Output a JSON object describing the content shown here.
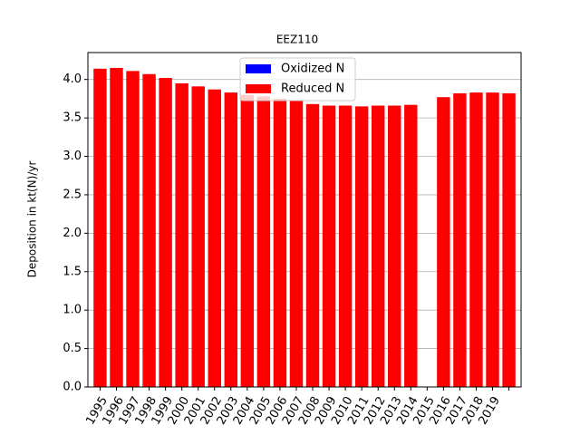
{
  "chart_data": {
    "type": "stacked-bar",
    "title": "EEZ110",
    "y_label": "Deposition in kt(N)/yr",
    "categories": [
      "1995",
      "1996",
      "1997",
      "1998",
      "1999",
      "2000",
      "2001",
      "2002",
      "2003",
      "2004",
      "2005",
      "2006",
      "2007",
      "2008",
      "2009",
      "2010",
      "2011",
      "2012",
      "2013",
      "2014",
      "2015",
      "2016",
      "2017",
      "2018",
      "2019",
      null
    ],
    "series": [
      {
        "name": "Oxidized N",
        "color": "#0000ff",
        "values": [
          0,
          0,
          0,
          0,
          0,
          0,
          0,
          0,
          0,
          0,
          0,
          0,
          0,
          0,
          0,
          0,
          0,
          0,
          0,
          0,
          null,
          0,
          0,
          0,
          0,
          0
        ]
      },
      {
        "name": "Reduced N",
        "color": "#ff0000",
        "values": [
          4.14,
          4.15,
          4.11,
          4.07,
          4.02,
          3.95,
          3.91,
          3.87,
          3.83,
          3.8,
          3.78,
          3.75,
          3.73,
          3.68,
          3.66,
          3.66,
          3.65,
          3.66,
          3.66,
          3.67,
          null,
          3.77,
          3.82,
          3.83,
          3.83,
          3.82
        ]
      }
    ],
    "ylim": [
      0,
      4.35
    ],
    "yticks": [
      {
        "value": 0,
        "label": "0.0"
      },
      {
        "value": 0.5,
        "label": "0.5"
      },
      {
        "value": 1,
        "label": "1.0"
      },
      {
        "value": 1.5,
        "label": "1.5"
      },
      {
        "value": 2,
        "label": "2.0"
      },
      {
        "value": 2.5,
        "label": "2.5"
      },
      {
        "value": 3,
        "label": "3.0"
      },
      {
        "value": 3.5,
        "label": "3.5"
      },
      {
        "value": 4,
        "label": "4.0"
      }
    ],
    "grid": true,
    "legend": "upper center"
  }
}
